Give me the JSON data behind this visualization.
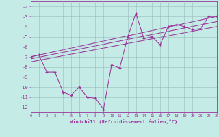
{
  "xlabel": "Windchill (Refroidissement éolien,°C)",
  "bg_color": "#c5ebe6",
  "grid_color": "#99bbbb",
  "line_color": "#993399",
  "xlim": [
    0,
    23
  ],
  "ylim": [
    -12.5,
    -1.5
  ],
  "xticks": [
    0,
    1,
    2,
    3,
    4,
    5,
    6,
    7,
    8,
    9,
    10,
    11,
    12,
    13,
    14,
    15,
    16,
    17,
    18,
    19,
    20,
    21,
    22,
    23
  ],
  "yticks": [
    -2,
    -3,
    -4,
    -5,
    -6,
    -7,
    -8,
    -9,
    -10,
    -11,
    -12
  ],
  "zigzag_x": [
    0,
    1,
    2,
    3,
    4,
    5,
    6,
    7,
    8,
    9,
    10,
    11,
    12,
    13,
    14,
    15,
    16,
    17,
    18,
    19,
    20,
    21,
    22,
    23
  ],
  "zigzag_y": [
    -7,
    -6.8,
    -8.5,
    -8.5,
    -10.5,
    -10.8,
    -10.0,
    -11.0,
    -11.1,
    -12.2,
    -7.8,
    -8.1,
    -5.0,
    -2.7,
    -5.2,
    -5.0,
    -5.8,
    -4.0,
    -3.8,
    -4.0,
    -4.3,
    -4.2,
    -3.0,
    -3.0
  ],
  "trend_lines": [
    {
      "x": [
        0,
        23
      ],
      "y": [
        -7.0,
        -3.0
      ]
    },
    {
      "x": [
        0,
        23
      ],
      "y": [
        -7.2,
        -3.5
      ]
    },
    {
      "x": [
        0,
        23
      ],
      "y": [
        -7.5,
        -4.0
      ]
    }
  ]
}
